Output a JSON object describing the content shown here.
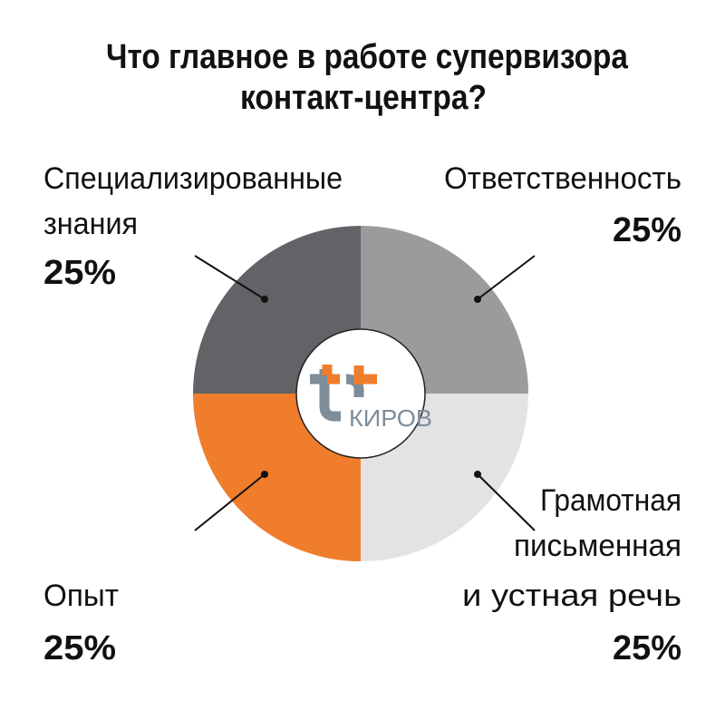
{
  "chart_data": {
    "type": "pie",
    "variant": "donut",
    "title": [
      "Что главное в работе супервизора",
      "контакт-центра?"
    ],
    "slices": [
      {
        "label": [
          "Ответственность"
        ],
        "value": 25,
        "value_label": "25%",
        "color": "#9a9b9d"
      },
      {
        "label": [
          "Грамотная",
          "письменная",
          "и устная речь"
        ],
        "value": 25,
        "value_label": "25%",
        "color": "#e3e3e4"
      },
      {
        "label": [
          "Опыт"
        ],
        "value": 25,
        "value_label": "25%",
        "color": "#f07d2c"
      },
      {
        "label": [
          "Специализированные",
          "знания"
        ],
        "value": 25,
        "value_label": "25%",
        "color": "#626366"
      }
    ],
    "center_logo": {
      "text": "КИРОВ",
      "accent": "#f07d2c",
      "gray": "#7d8d9a"
    }
  }
}
